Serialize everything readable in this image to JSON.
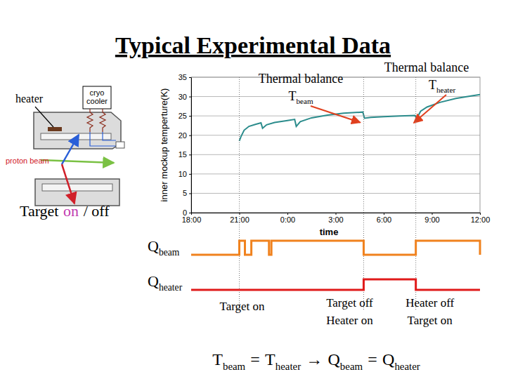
{
  "title": "Typical Experimental Data",
  "diagram": {
    "heater": "heater",
    "cooler": [
      "cryo",
      "cooler"
    ],
    "beam": "proton beam",
    "target": [
      {
        "text": "Target"
      },
      {
        "text": "on",
        "color": "#c23bb0"
      },
      {
        "text": "/ off"
      }
    ]
  },
  "chart_data": {
    "type": "line",
    "xlabel": "time",
    "ylabel": "inner mockup temperture(K)",
    "x": [
      21.0,
      21.1,
      21.3,
      21.6,
      22.0,
      22.35,
      22.45,
      22.7,
      23.2,
      24.0,
      24.45,
      24.55,
      24.8,
      25.5,
      26.5,
      27.5,
      28.7,
      28.8,
      29.2,
      30.0,
      31.0,
      31.95,
      32.05,
      32.3,
      32.7,
      33.5,
      34.5,
      35.5,
      36.0
    ],
    "values": [
      18.5,
      19.6,
      21.3,
      22.3,
      22.8,
      23.2,
      21.8,
      22.7,
      23.3,
      23.8,
      24.1,
      22.3,
      23.5,
      24.5,
      25.2,
      25.7,
      26.0,
      24.4,
      24.6,
      24.8,
      25.0,
      25.1,
      24.3,
      26.2,
      27.3,
      28.5,
      29.5,
      30.2,
      30.5
    ],
    "color": "#2b8c8c",
    "xlim": [
      18,
      36
    ],
    "xticks": [
      {
        "value": 18,
        "label": "18:00"
      },
      {
        "value": 21,
        "label": "21:00"
      },
      {
        "value": 24,
        "label": "0:00"
      },
      {
        "value": 27,
        "label": "3:00"
      },
      {
        "value": 30,
        "label": "6:00"
      },
      {
        "value": 33,
        "label": "9:00"
      },
      {
        "value": 36,
        "label": "12:00"
      }
    ],
    "ylim": [
      0,
      35
    ],
    "yticks": [
      0,
      5,
      10,
      15,
      20,
      25,
      30,
      35
    ],
    "grid": true,
    "annotations": [
      {
        "lines": [
          [
            {
              "text": "Thermal balance"
            }
          ],
          [
            {
              "text": "T",
              "sub": "beam"
            }
          ]
        ],
        "x": 28.8,
        "y": 24.4
      },
      {
        "lines": [
          [
            {
              "text": "Thermal balance"
            }
          ],
          [
            {
              "text": "T",
              "sub": "heater"
            }
          ]
        ],
        "x": 32.05,
        "y": 24.3
      }
    ]
  },
  "timing": {
    "signals": [
      {
        "label": [
          {
            "text": "Q",
            "sub": "beam"
          }
        ],
        "color": "#f0821e",
        "on": [
          [
            21.0,
            21.35
          ],
          [
            21.75,
            22.85
          ],
          [
            23.0,
            28.75
          ],
          [
            32.0,
            36.0
          ]
        ]
      },
      {
        "label": [
          {
            "text": "Q",
            "sub": "heater"
          }
        ],
        "color": "#e01b1b",
        "on": [
          [
            28.75,
            32.0
          ]
        ]
      }
    ],
    "events": [
      21.0,
      28.75,
      32.0
    ],
    "labels": [
      [
        "Target on"
      ],
      [
        "Target off",
        "Heater on"
      ],
      [
        "Heater off",
        "Target on"
      ]
    ]
  },
  "equation": [
    {
      "text": "T",
      "sub": "beam"
    },
    {
      "text": "="
    },
    {
      "text": "T",
      "sub": "heater"
    },
    {
      "text": "→"
    },
    {
      "text": "Q",
      "sub": "beam"
    },
    {
      "text": "="
    },
    {
      "text": "Q",
      "sub": "heater"
    }
  ]
}
